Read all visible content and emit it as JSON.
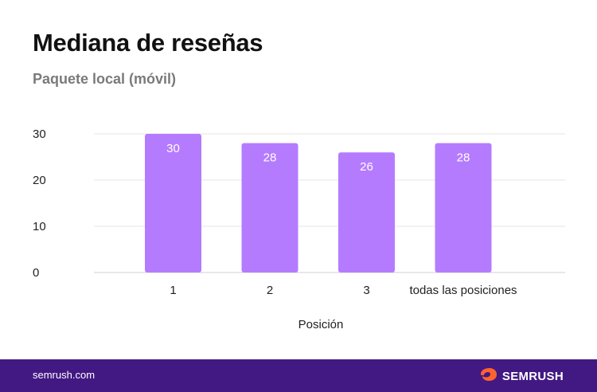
{
  "header": {
    "title": "Mediana de reseñas",
    "subtitle": "Paquete local (móvil)"
  },
  "chart_data": {
    "type": "bar",
    "categories": [
      "1",
      "2",
      "3",
      "todas las posiciones"
    ],
    "values": [
      30,
      28,
      26,
      28
    ],
    "xlabel": "Posición",
    "ylabel": "",
    "ylim": [
      0,
      30
    ],
    "yticks": [
      0,
      10,
      20,
      30
    ],
    "grid": true,
    "bar_color": "#b57bff"
  },
  "footer": {
    "url": "semrush.com",
    "brand": "SEMRUSH",
    "brand_icon": "semrush-flame-logo",
    "background": "#421983",
    "logo_color": "#ff642d"
  }
}
